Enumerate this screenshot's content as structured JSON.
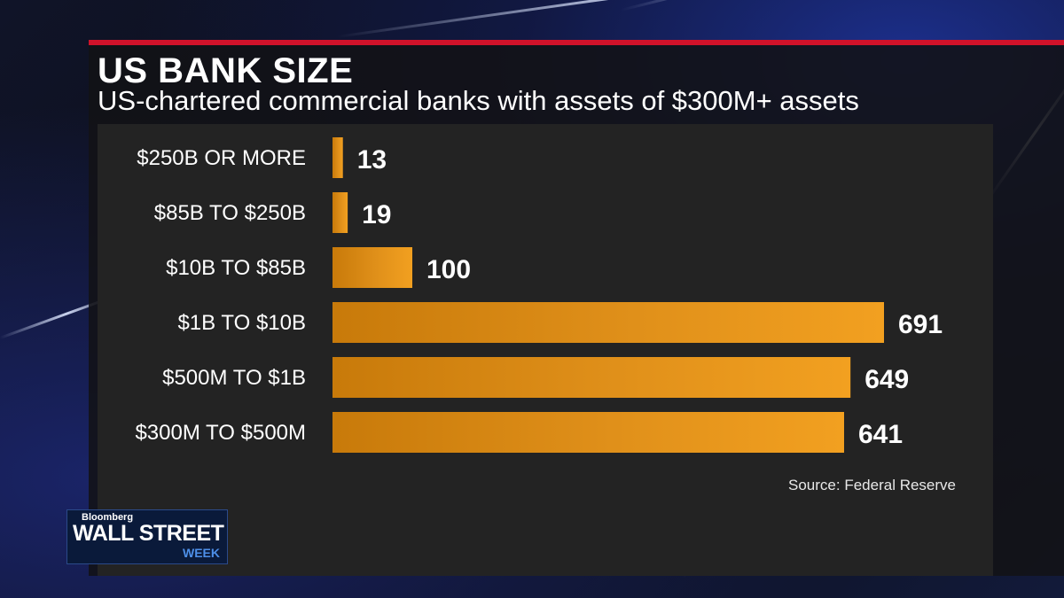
{
  "header": {
    "title": "US BANK SIZE",
    "subtitle": "US-chartered commercial banks with assets of $300M+ assets"
  },
  "footer": {
    "source": "Source: Federal Reserve"
  },
  "logo": {
    "brand": "Bloomberg",
    "main": "WALL STREET",
    "sub": "WEEK"
  },
  "colors": {
    "bar": "#e8951a",
    "accent_red": "#d0122a",
    "panel": "#232323"
  },
  "chart_data": {
    "type": "bar",
    "orientation": "horizontal",
    "title": "US BANK SIZE",
    "subtitle": "US-chartered commercial banks with assets of $300M+ assets",
    "categories": [
      "$250B OR MORE",
      "$85B TO $250B",
      "$10B TO $85B",
      "$1B TO $10B",
      "$500M TO $1B",
      "$300M TO $500M"
    ],
    "values": [
      13,
      19,
      100,
      691,
      649,
      641
    ],
    "grid": false,
    "legend": "none"
  }
}
